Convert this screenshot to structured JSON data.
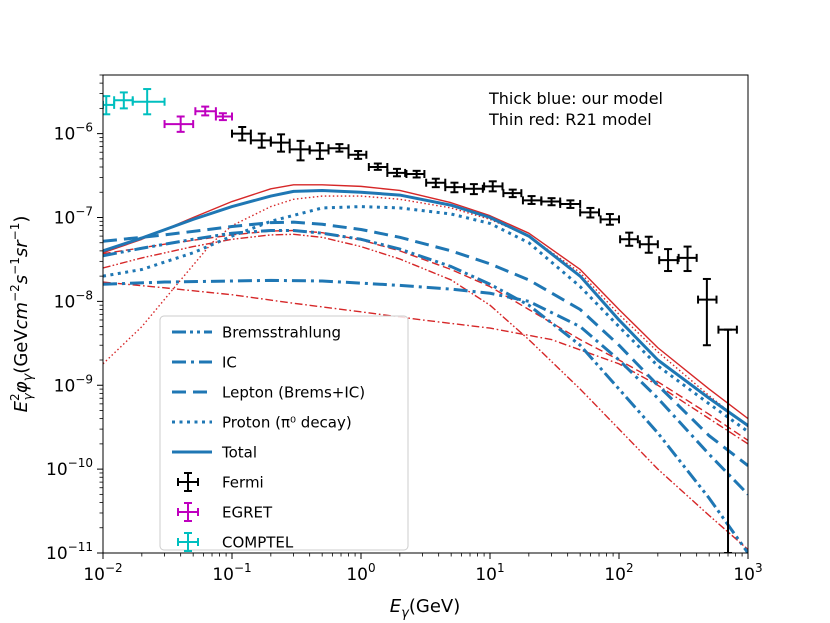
{
  "chart_data": {
    "type": "line",
    "xscale": "log",
    "yscale": "log",
    "xlim": [
      0.01,
      1000
    ],
    "ylim": [
      1e-11,
      5e-06
    ],
    "xlabel": "E_γ(GeV)",
    "ylabel": "E_γ²φ_γ(GeVcm⁻²s⁻¹sr⁻¹)",
    "x_ticks": [
      {
        "value": 0.01,
        "base": "10",
        "exp": "−2"
      },
      {
        "value": 0.1,
        "base": "10",
        "exp": "−1"
      },
      {
        "value": 1,
        "base": "10",
        "exp": "0"
      },
      {
        "value": 10,
        "base": "10",
        "exp": "1"
      },
      {
        "value": 100,
        "base": "10",
        "exp": "2"
      },
      {
        "value": 1000,
        "base": "10",
        "exp": "3"
      }
    ],
    "y_ticks": [
      {
        "value": 1e-11,
        "base": "10",
        "exp": "−11"
      },
      {
        "value": 1e-10,
        "base": "10",
        "exp": "−10"
      },
      {
        "value": 1e-09,
        "base": "10",
        "exp": "−9"
      },
      {
        "value": 1e-08,
        "base": "10",
        "exp": "−8"
      },
      {
        "value": 1e-07,
        "base": "10",
        "exp": "−7"
      },
      {
        "value": 1e-06,
        "base": "10",
        "exp": "−6"
      }
    ],
    "annotations": [
      "Thick blue: our model",
      "Thin red: R21 model"
    ],
    "legend_placement": "lower-left",
    "colors": {
      "blue": "#1f77b4",
      "red": "#d62728",
      "black": "#000000",
      "egret": "#bf00bf",
      "comptel": "#00bfbf"
    },
    "curves": [
      {
        "name": "Bremsstrahlung",
        "model": "our model",
        "color": "#1f77b4",
        "style": "dashdotdot",
        "x": [
          0.01,
          0.02,
          0.05,
          0.1,
          0.2,
          0.3,
          0.5,
          1,
          2,
          5,
          10,
          20,
          50,
          100,
          200,
          500,
          1000
        ],
        "y": [
          3.5e-08,
          4.3e-08,
          5.5e-08,
          6.5e-08,
          7e-08,
          7e-08,
          6.5e-08,
          5.5e-08,
          4.2e-08,
          2.6e-08,
          1.6e-08,
          9e-09,
          3e-09,
          9e-10,
          2.7e-10,
          4.5e-11,
          1e-11
        ]
      },
      {
        "name": "IC",
        "model": "our model",
        "color": "#1f77b4",
        "style": "dashdot",
        "x": [
          0.01,
          0.03,
          0.1,
          0.2,
          0.5,
          1,
          2,
          5,
          10,
          20,
          50,
          100,
          200,
          500,
          1000
        ],
        "y": [
          1.6e-08,
          1.7e-08,
          1.75e-08,
          1.78e-08,
          1.75e-08,
          1.65e-08,
          1.55e-08,
          1.4e-08,
          1.25e-08,
          1e-08,
          5e-09,
          2e-09,
          7e-10,
          1.5e-10,
          5e-11
        ]
      },
      {
        "name": "Lepton (Brems+IC)",
        "model": "our model",
        "color": "#1f77b4",
        "style": "dashed",
        "x": [
          0.01,
          0.03,
          0.1,
          0.2,
          0.3,
          0.5,
          1,
          2,
          5,
          10,
          20,
          50,
          100,
          200,
          500,
          1000
        ],
        "y": [
          5.2e-08,
          6.2e-08,
          7.8e-08,
          8.7e-08,
          8.8e-08,
          8.3e-08,
          7.2e-08,
          5.8e-08,
          4e-08,
          2.8e-08,
          1.8e-08,
          8e-09,
          3e-09,
          1e-09,
          2.5e-10,
          1.1e-10
        ]
      },
      {
        "name": "Proton (π⁰ decay)",
        "model": "our model",
        "color": "#1f77b4",
        "style": "dotted",
        "x": [
          0.01,
          0.02,
          0.05,
          0.1,
          0.2,
          0.5,
          1,
          2,
          5,
          10,
          20,
          50,
          100,
          200,
          500,
          1000
        ],
        "y": [
          2e-08,
          2.4e-08,
          3.8e-08,
          6e-08,
          9e-08,
          1.3e-07,
          1.35e-07,
          1.3e-07,
          1.1e-07,
          8.5e-08,
          5e-08,
          1.5e-08,
          5e-09,
          1.7e-09,
          6e-10,
          2.8e-10
        ]
      },
      {
        "name": "Total",
        "model": "our model",
        "color": "#1f77b4",
        "style": "solid",
        "x": [
          0.01,
          0.02,
          0.05,
          0.1,
          0.2,
          0.3,
          0.5,
          1,
          2,
          5,
          10,
          20,
          50,
          100,
          200,
          500,
          1000
        ],
        "y": [
          4e-08,
          5.7e-08,
          9.5e-08,
          1.35e-07,
          1.8e-07,
          2.05e-07,
          2.1e-07,
          2e-07,
          1.85e-07,
          1.4e-07,
          1e-07,
          6e-08,
          2e-08,
          6e-09,
          2e-09,
          7e-10,
          3.3e-10
        ]
      },
      {
        "name": "Bremsstrahlung",
        "model": "R21 model",
        "color": "#d62728",
        "style": "dashdotdot",
        "x": [
          0.01,
          0.02,
          0.05,
          0.1,
          0.2,
          0.3,
          0.5,
          1,
          2,
          5,
          10,
          20,
          50,
          100,
          200,
          500,
          1000
        ],
        "y": [
          2.5e-08,
          3.3e-08,
          4.5e-08,
          5.5e-08,
          6.2e-08,
          6.3e-08,
          5.8e-08,
          4.5e-08,
          3.2e-08,
          1.8e-08,
          9e-09,
          3.5e-09,
          9e-10,
          3e-10,
          1e-10,
          2.8e-11,
          1.1e-11
        ]
      },
      {
        "name": "IC",
        "model": "R21 model",
        "color": "#d62728",
        "style": "dashdot",
        "x": [
          0.01,
          0.03,
          0.1,
          0.3,
          1,
          3,
          10,
          30,
          100,
          200,
          500,
          1000
        ],
        "y": [
          1.7e-08,
          1.45e-08,
          1.2e-08,
          9.5e-09,
          7.5e-09,
          6e-09,
          4.8e-09,
          3.5e-09,
          1.8e-09,
          1e-09,
          4e-10,
          2e-10
        ]
      },
      {
        "name": "Lepton (Brems+IC)",
        "model": "R21 model",
        "color": "#d62728",
        "style": "dashed",
        "x": [
          0.01,
          0.03,
          0.1,
          0.2,
          0.3,
          0.5,
          1,
          2,
          5,
          10,
          20,
          50,
          100,
          200,
          500,
          1000
        ],
        "y": [
          3.7e-08,
          4.8e-08,
          6.2e-08,
          6.9e-08,
          7e-08,
          6.6e-08,
          5.4e-08,
          4e-08,
          2.4e-08,
          1.5e-08,
          8e-09,
          3.5e-09,
          2e-09,
          1.1e-09,
          4.5e-10,
          2.2e-10
        ]
      },
      {
        "name": "Proton (π⁰ decay)",
        "model": "R21 model",
        "color": "#d62728",
        "style": "dotted",
        "x": [
          0.01,
          0.02,
          0.04,
          0.07,
          0.1,
          0.2,
          0.3,
          0.5,
          1,
          2,
          5,
          10,
          20,
          50,
          100,
          200,
          500,
          1000
        ],
        "y": [
          1.8e-09,
          5e-09,
          1.8e-08,
          5e-08,
          8e-08,
          1.35e-07,
          1.65e-07,
          1.8e-07,
          1.8e-07,
          1.65e-07,
          1.3e-07,
          9.5e-08,
          6e-08,
          2.2e-08,
          7e-09,
          2.5e-09,
          7.5e-10,
          3.2e-10
        ]
      },
      {
        "name": "Total",
        "model": "R21 model",
        "color": "#d62728",
        "style": "solid",
        "x": [
          0.01,
          0.02,
          0.05,
          0.1,
          0.2,
          0.3,
          0.5,
          1,
          2,
          5,
          10,
          20,
          50,
          100,
          200,
          500,
          1000
        ],
        "y": [
          3.8e-08,
          5.5e-08,
          1e-07,
          1.55e-07,
          2.2e-07,
          2.45e-07,
          2.45e-07,
          2.35e-07,
          2.1e-07,
          1.5e-07,
          1.05e-07,
          6.5e-08,
          2.4e-08,
          8e-09,
          2.8e-09,
          9e-10,
          4e-10
        ]
      }
    ],
    "data_series": [
      {
        "name": "Fermi",
        "color": "#000000",
        "points": [
          {
            "x": 0.12,
            "y": 1e-06,
            "xlo": 0.1,
            "xhi": 0.14,
            "ylo": 8.3e-07,
            "yhi": 1.2e-06
          },
          {
            "x": 0.17,
            "y": 8.3e-07,
            "xlo": 0.14,
            "xhi": 0.2,
            "ylo": 6.8e-07,
            "yhi": 1e-06
          },
          {
            "x": 0.24,
            "y": 7.8e-07,
            "xlo": 0.2,
            "xhi": 0.28,
            "ylo": 6.1e-07,
            "yhi": 9.8e-07
          },
          {
            "x": 0.34,
            "y": 6.5e-07,
            "xlo": 0.28,
            "xhi": 0.4,
            "ylo": 4.8e-07,
            "yhi": 8.2e-07
          },
          {
            "x": 0.48,
            "y": 6.3e-07,
            "xlo": 0.4,
            "xhi": 0.56,
            "ylo": 5e-07,
            "yhi": 7.7e-07
          },
          {
            "x": 0.68,
            "y": 6.7e-07,
            "xlo": 0.56,
            "xhi": 0.8,
            "ylo": 6.1e-07,
            "yhi": 7.5e-07
          },
          {
            "x": 0.95,
            "y": 5.6e-07,
            "xlo": 0.8,
            "xhi": 1.1,
            "ylo": 5e-07,
            "yhi": 6.2e-07
          },
          {
            "x": 1.35,
            "y": 4e-07,
            "xlo": 1.15,
            "xhi": 1.6,
            "ylo": 3.7e-07,
            "yhi": 4.4e-07
          },
          {
            "x": 1.9,
            "y": 3.4e-07,
            "xlo": 1.6,
            "xhi": 2.2,
            "ylo": 3.1e-07,
            "yhi": 3.8e-07
          },
          {
            "x": 2.7,
            "y": 3.3e-07,
            "xlo": 2.25,
            "xhi": 3.1,
            "ylo": 3e-07,
            "yhi": 3.6e-07
          },
          {
            "x": 3.8,
            "y": 2.6e-07,
            "xlo": 3.2,
            "xhi": 4.5,
            "ylo": 2.3e-07,
            "yhi": 2.9e-07
          },
          {
            "x": 5.3,
            "y": 2.3e-07,
            "xlo": 4.5,
            "xhi": 6.3,
            "ylo": 2e-07,
            "yhi": 2.6e-07
          },
          {
            "x": 7.5,
            "y": 2.2e-07,
            "xlo": 6.3,
            "xhi": 8.8,
            "ylo": 1.9e-07,
            "yhi": 2.5e-07
          },
          {
            "x": 10.5,
            "y": 2.35e-07,
            "xlo": 9,
            "xhi": 12.5,
            "ylo": 2.05e-07,
            "yhi": 2.7e-07
          },
          {
            "x": 15,
            "y": 1.95e-07,
            "xlo": 12.7,
            "xhi": 17.5,
            "ylo": 1.75e-07,
            "yhi": 2.15e-07
          },
          {
            "x": 21,
            "y": 1.6e-07,
            "xlo": 18,
            "xhi": 25,
            "ylo": 1.45e-07,
            "yhi": 1.8e-07
          },
          {
            "x": 30,
            "y": 1.55e-07,
            "xlo": 25,
            "xhi": 35,
            "ylo": 1.4e-07,
            "yhi": 1.7e-07
          },
          {
            "x": 42,
            "y": 1.45e-07,
            "xlo": 35,
            "xhi": 50,
            "ylo": 1.3e-07,
            "yhi": 1.6e-07
          },
          {
            "x": 60,
            "y": 1.15e-07,
            "xlo": 50,
            "xhi": 70,
            "ylo": 1e-07,
            "yhi": 1.3e-07
          },
          {
            "x": 85,
            "y": 9.5e-08,
            "xlo": 72,
            "xhi": 100,
            "ylo": 8.2e-08,
            "yhi": 1.1e-07
          },
          {
            "x": 120,
            "y": 5.5e-08,
            "xlo": 102,
            "xhi": 140,
            "ylo": 4.6e-08,
            "yhi": 6.6e-08
          },
          {
            "x": 170,
            "y": 4.8e-08,
            "xlo": 145,
            "xhi": 200,
            "ylo": 3.8e-08,
            "yhi": 5.9e-08
          },
          {
            "x": 240,
            "y": 3.1e-08,
            "xlo": 205,
            "xhi": 285,
            "ylo": 2.3e-08,
            "yhi": 4.2e-08
          },
          {
            "x": 340,
            "y": 3.3e-08,
            "xlo": 290,
            "xhi": 400,
            "ylo": 2.3e-08,
            "yhi": 4.5e-08
          },
          {
            "x": 480,
            "y": 1.05e-08,
            "xlo": 410,
            "xhi": 570,
            "ylo": 3e-09,
            "yhi": 1.85e-08
          },
          {
            "x": 700,
            "y": 4.6e-09,
            "xlo": 590,
            "xhi": 820,
            "ylo": 1e-11,
            "yhi": 4.6e-09
          }
        ]
      },
      {
        "name": "EGRET",
        "color": "#bf00bf",
        "points": [
          {
            "x": 0.04,
            "y": 1.3e-06,
            "xlo": 0.03,
            "xhi": 0.05,
            "ylo": 1.05e-06,
            "yhi": 1.6e-06
          },
          {
            "x": 0.062,
            "y": 1.85e-06,
            "xlo": 0.052,
            "xhi": 0.075,
            "ylo": 1.65e-06,
            "yhi": 2.1e-06
          },
          {
            "x": 0.085,
            "y": 1.6e-06,
            "xlo": 0.075,
            "xhi": 0.1,
            "ylo": 1.45e-06,
            "yhi": 1.75e-06
          }
        ]
      },
      {
        "name": "COMPTEL",
        "color": "#00bfbf",
        "points": [
          {
            "x": 0.0106,
            "y": 2.2e-06,
            "xlo": 0.01,
            "xhi": 0.0122,
            "ylo": 1.7e-06,
            "yhi": 2.8e-06
          },
          {
            "x": 0.0145,
            "y": 2.5e-06,
            "xlo": 0.0122,
            "xhi": 0.017,
            "ylo": 2e-06,
            "yhi": 3.1e-06
          },
          {
            "x": 0.022,
            "y": 2.4e-06,
            "xlo": 0.017,
            "xhi": 0.03,
            "ylo": 1.7e-06,
            "yhi": 3.4e-06
          }
        ]
      }
    ],
    "legend": [
      {
        "label": "Bremsstrahlung",
        "kind": "line",
        "style": "dashdotdot",
        "color": "#1f77b4"
      },
      {
        "label": "IC",
        "kind": "line",
        "style": "dashdot",
        "color": "#1f77b4"
      },
      {
        "label": "Lepton (Brems+IC)",
        "kind": "line",
        "style": "dashed",
        "color": "#1f77b4"
      },
      {
        "label": "Proton (π⁰ decay)",
        "kind": "line",
        "style": "dotted",
        "color": "#1f77b4"
      },
      {
        "label": "Total",
        "kind": "line",
        "style": "solid",
        "color": "#1f77b4"
      },
      {
        "label": "Fermi",
        "kind": "errorbar",
        "color": "#000000"
      },
      {
        "label": "EGRET",
        "kind": "errorbar",
        "color": "#bf00bf"
      },
      {
        "label": "COMPTEL",
        "kind": "errorbar",
        "color": "#00bfbf"
      }
    ]
  }
}
